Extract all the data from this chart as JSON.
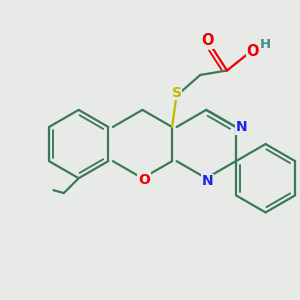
{
  "background_color": "#e8eae8",
  "bond_color": "#3a7a5a",
  "o_color": "#ee0000",
  "n_color": "#2222ee",
  "s_color": "#bbbb00",
  "h_color": "#448888",
  "lw": 1.6,
  "xlim": [
    0,
    10
  ],
  "ylim": [
    0,
    10
  ]
}
